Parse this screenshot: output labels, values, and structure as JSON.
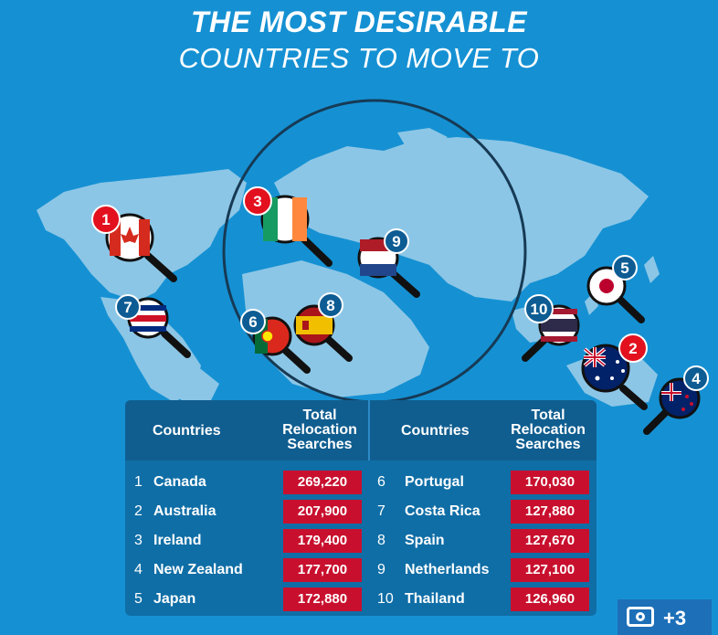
{
  "title": {
    "line1": "THE MOST DESIRABLE",
    "line2": "COUNTRIES TO MOVE TO"
  },
  "table": {
    "left_header": {
      "countries": "Countries",
      "searches_line1": "Total",
      "searches_line2": "Relocation",
      "searches_line3": "Searches"
    },
    "right_header": {
      "countries": "Countries",
      "searches_line1": "Total",
      "searches_line2": "Relocation",
      "searches_line3": "Searches"
    },
    "left_rows": [
      {
        "rank": "1",
        "country": "Canada",
        "searches": "269,220"
      },
      {
        "rank": "2",
        "country": "Australia",
        "searches": "207,900"
      },
      {
        "rank": "3",
        "country": "Ireland",
        "searches": "179,400"
      },
      {
        "rank": "4",
        "country": "New Zealand",
        "searches": "177,700"
      },
      {
        "rank": "5",
        "country": "Japan",
        "searches": "172,880"
      }
    ],
    "right_rows": [
      {
        "rank": "6",
        "country": "Portugal",
        "searches": "170,030"
      },
      {
        "rank": "7",
        "country": "Costa Rica",
        "searches": "127,880"
      },
      {
        "rank": "8",
        "country": "Spain",
        "searches": "127,670"
      },
      {
        "rank": "9",
        "country": "Netherlands",
        "searches": "127,100"
      },
      {
        "rank": "10",
        "country": "Thailand",
        "searches": "126,960"
      }
    ]
  },
  "map_pins": [
    {
      "rank": "1",
      "flag": "canada-flag"
    },
    {
      "rank": "2",
      "flag": "australia-flag"
    },
    {
      "rank": "3",
      "flag": "ireland-flag"
    },
    {
      "rank": "4",
      "flag": "new-zealand-flag"
    },
    {
      "rank": "5",
      "flag": "japan-flag"
    },
    {
      "rank": "6",
      "flag": "portugal-flag"
    },
    {
      "rank": "7",
      "flag": "costa-rica-flag"
    },
    {
      "rank": "8",
      "flag": "spain-flag"
    },
    {
      "rank": "9",
      "flag": "netherlands-flag"
    },
    {
      "rank": "10",
      "flag": "thailand-flag"
    }
  ],
  "gallery_badge": {
    "icon": "camera-icon",
    "count": "+3"
  },
  "colors": {
    "background": "#1591d3",
    "land": "#8cc6e6",
    "table": "#0f6ea6",
    "value_badge": "#c8102e",
    "red_pin": "#e3101e",
    "blue_pin": "#0d5c93"
  }
}
